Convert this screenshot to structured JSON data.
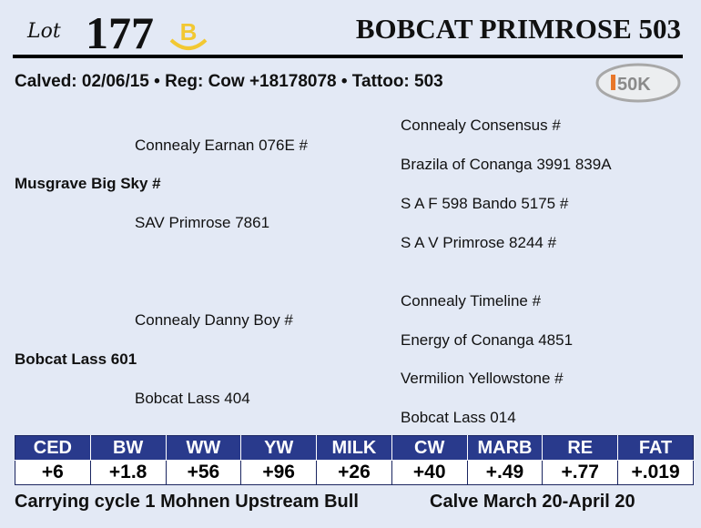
{
  "header": {
    "lot_label": "Lot",
    "lot_number": "177",
    "badge_letter": "B",
    "badge_color": "#f2c832",
    "title": "BOBCAT PRIMROSE 503"
  },
  "info_line": "Calved: 02/06/15 • Reg: Cow +18178078 • Tattoo: 503",
  "logo": {
    "text": "i50K",
    "accent": "#e8772a"
  },
  "pedigree": {
    "sire": "Musgrave Big Sky #",
    "sire_sire": "Connealy Earnan 076E #",
    "sire_dam": "SAV Primrose 7861",
    "sss": "Connealy Consensus #",
    "ssd": "Brazila of Conanga 3991 839A",
    "sds": "S A F 598 Bando 5175 #",
    "sdd": "S A V Primrose 8244 #",
    "dam": "Bobcat Lass 601",
    "dam_sire": "Connealy Danny Boy #",
    "dam_dam": "Bobcat Lass 404",
    "dss": "Connealy Timeline #",
    "dsd": "Energy of Conanga 4851",
    "dds": "Vermilion Yellowstone #",
    "ddd": "Bobcat Lass 014"
  },
  "epd": {
    "headers": [
      "CED",
      "BW",
      "WW",
      "YW",
      "MILK",
      "CW",
      "MARB",
      "RE",
      "FAT"
    ],
    "values": [
      "+6",
      "+1.8",
      "+56",
      "+96",
      "+26",
      "+40",
      "+.49",
      "+.77",
      "+.019"
    ],
    "header_color": "#293a8c"
  },
  "footer": {
    "left": "Carrying cycle 1 Mohnen Upstream Bull",
    "right": "Calve March 20-April 20"
  }
}
